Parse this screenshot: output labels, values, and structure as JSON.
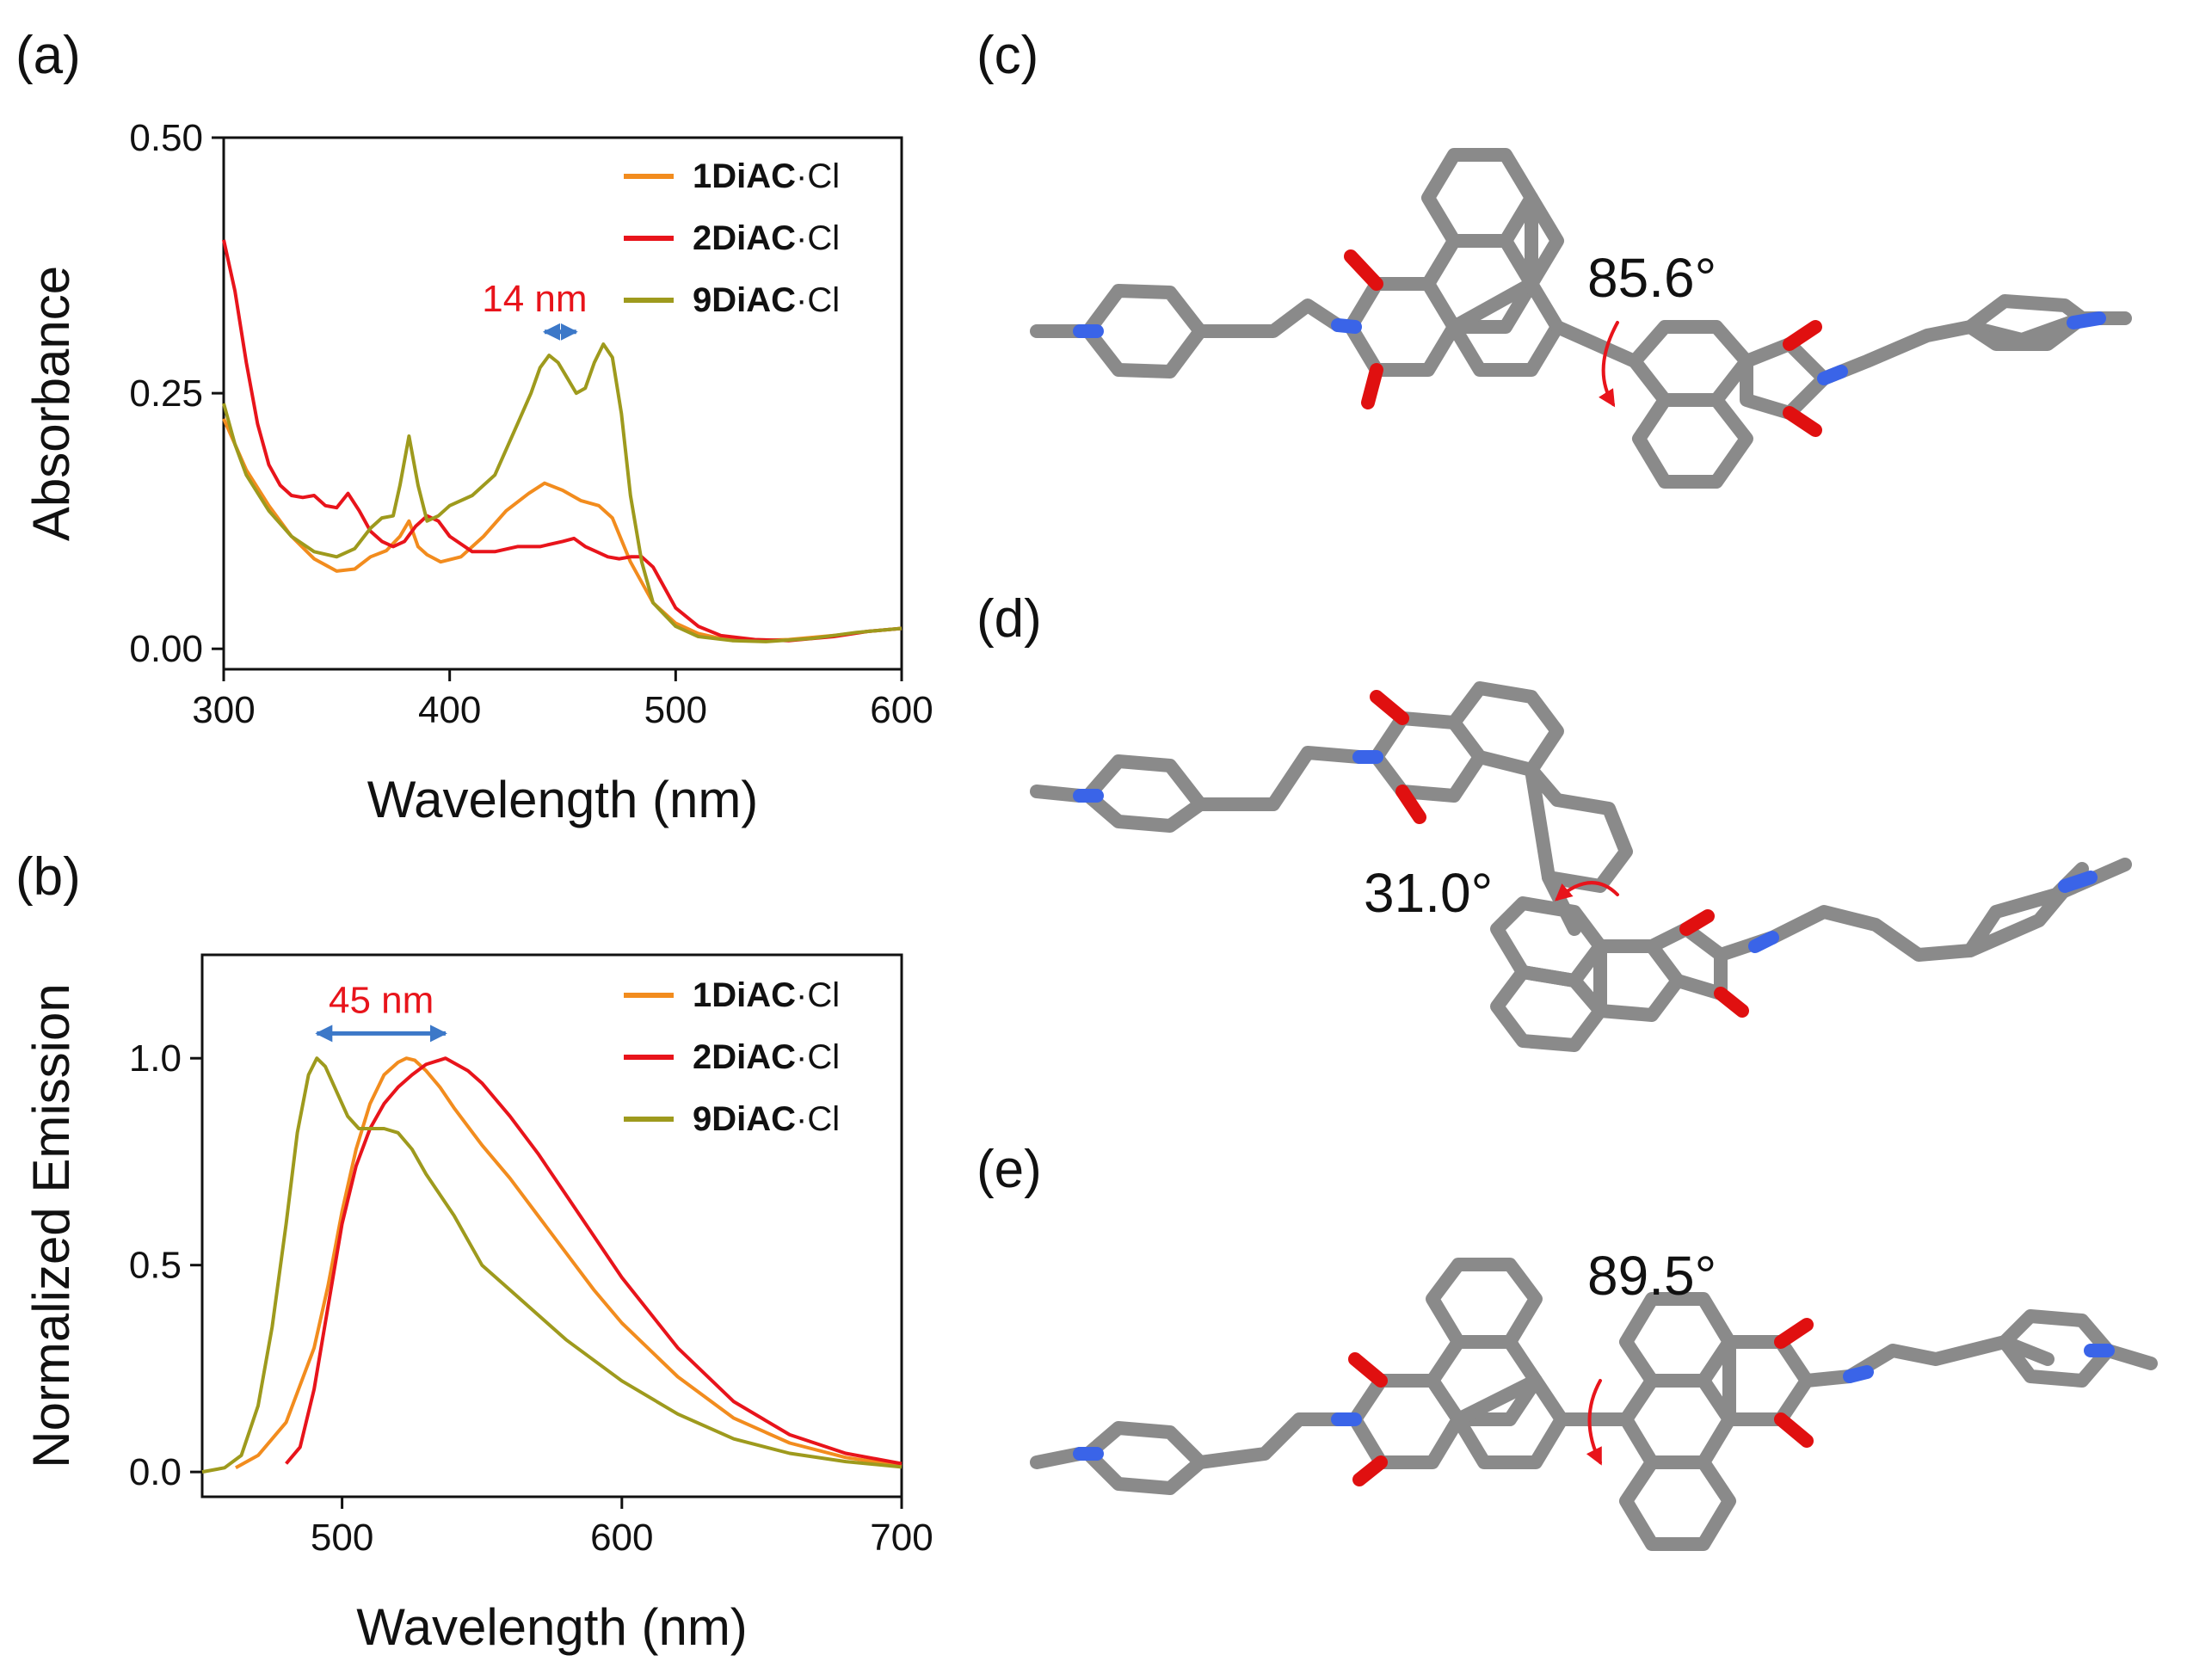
{
  "colors": {
    "series_1DiAC": "#F28C1E",
    "series_2DiAC": "#E8141B",
    "series_9DiAC": "#9E9A1D",
    "annotation_text": "#E8141B",
    "annotation_arrow": "#3C78C8",
    "carbon": "#8a8a8a",
    "oxygen": "#e01010",
    "nitrogen": "#3a64e8"
  },
  "panels": {
    "a": "(a)",
    "b": "(b)",
    "c": "(c)",
    "d": "(d)",
    "e": "(e)"
  },
  "legend_suffix": "·Cl",
  "chart_data": [
    {
      "type": "line",
      "panel": "a",
      "xlabel": "Wavelength (nm)",
      "ylabel": "Absorbance",
      "xlim": [
        300,
        600
      ],
      "ylim": [
        -0.02,
        0.5
      ],
      "xticks": [
        {
          "v": 300,
          "label": "300"
        },
        {
          "v": 400,
          "label": "400"
        },
        {
          "v": 500,
          "label": "500"
        },
        {
          "v": 600,
          "label": "600"
        }
      ],
      "yticks": [
        {
          "v": 0.0,
          "label": "0.00"
        },
        {
          "v": 0.25,
          "label": "0.25"
        },
        {
          "v": 0.5,
          "label": "0.50"
        }
      ],
      "legend_position": "top-right",
      "annotation": {
        "text": "14 nm",
        "x1": 442,
        "x2": 456,
        "y": 0.31
      },
      "series": [
        {
          "name": "1DiAC",
          "x": [
            300,
            310,
            320,
            330,
            340,
            350,
            358,
            365,
            372,
            378,
            382,
            386,
            390,
            396,
            405,
            415,
            425,
            435,
            442,
            450,
            458,
            466,
            472,
            480,
            490,
            500,
            510,
            520,
            535,
            550,
            570,
            585,
            600
          ],
          "y": [
            0.225,
            0.175,
            0.14,
            0.11,
            0.088,
            0.076,
            0.078,
            0.09,
            0.096,
            0.11,
            0.125,
            0.1,
            0.092,
            0.085,
            0.09,
            0.11,
            0.135,
            0.152,
            0.162,
            0.155,
            0.145,
            0.14,
            0.128,
            0.085,
            0.045,
            0.025,
            0.015,
            0.01,
            0.008,
            0.009,
            0.013,
            0.017,
            0.02
          ]
        },
        {
          "name": "2DiAC",
          "x": [
            300,
            305,
            310,
            315,
            320,
            325,
            330,
            335,
            340,
            345,
            350,
            355,
            360,
            365,
            370,
            375,
            380,
            385,
            390,
            395,
            400,
            410,
            420,
            430,
            440,
            450,
            455,
            460,
            465,
            470,
            475,
            480,
            485,
            490,
            495,
            500,
            510,
            520,
            535,
            550,
            570,
            585,
            600
          ],
          "y": [
            0.4,
            0.35,
            0.28,
            0.22,
            0.18,
            0.16,
            0.15,
            0.148,
            0.15,
            0.14,
            0.138,
            0.152,
            0.135,
            0.115,
            0.105,
            0.1,
            0.105,
            0.12,
            0.13,
            0.125,
            0.11,
            0.095,
            0.095,
            0.1,
            0.1,
            0.105,
            0.108,
            0.1,
            0.095,
            0.09,
            0.088,
            0.09,
            0.09,
            0.08,
            0.06,
            0.04,
            0.022,
            0.013,
            0.009,
            0.008,
            0.012,
            0.017,
            0.02
          ]
        },
        {
          "name": "9DiAC",
          "x": [
            300,
            305,
            310,
            320,
            330,
            340,
            350,
            358,
            365,
            370,
            375,
            378,
            382,
            386,
            390,
            395,
            400,
            410,
            420,
            430,
            436,
            440,
            444,
            448,
            452,
            456,
            460,
            464,
            468,
            472,
            476,
            480,
            485,
            490,
            500,
            510,
            525,
            540,
            560,
            580,
            600
          ],
          "y": [
            0.24,
            0.2,
            0.17,
            0.135,
            0.11,
            0.095,
            0.09,
            0.098,
            0.118,
            0.128,
            0.13,
            0.16,
            0.208,
            0.16,
            0.125,
            0.13,
            0.14,
            0.15,
            0.17,
            0.22,
            0.25,
            0.275,
            0.287,
            0.28,
            0.265,
            0.25,
            0.255,
            0.28,
            0.298,
            0.285,
            0.23,
            0.15,
            0.085,
            0.045,
            0.022,
            0.012,
            0.008,
            0.007,
            0.01,
            0.016,
            0.02
          ]
        }
      ]
    },
    {
      "type": "line",
      "panel": "b",
      "xlabel": "Wavelength (nm)",
      "ylabel": "Normalized Emission",
      "xlim": [
        450,
        700
      ],
      "ylim": [
        -0.06,
        1.25
      ],
      "xticks": [
        {
          "v": 500,
          "label": "500"
        },
        {
          "v": 600,
          "label": "600"
        },
        {
          "v": 700,
          "label": "700"
        }
      ],
      "yticks": [
        {
          "v": 0.0,
          "label": "0.0"
        },
        {
          "v": 0.5,
          "label": "0.5"
        },
        {
          "v": 1.0,
          "label": "1.0"
        }
      ],
      "legend_position": "top-right",
      "annotation": {
        "text": "45 nm",
        "x1": 491,
        "x2": 537,
        "y": 1.06
      },
      "series": [
        {
          "name": "1DiAC",
          "x": [
            462,
            470,
            480,
            490,
            495,
            500,
            505,
            510,
            515,
            520,
            523,
            526,
            530,
            535,
            540,
            550,
            560,
            570,
            580,
            590,
            600,
            620,
            640,
            660,
            680,
            700
          ],
          "y": [
            0.01,
            0.04,
            0.12,
            0.3,
            0.45,
            0.63,
            0.78,
            0.89,
            0.96,
            0.99,
            1.0,
            0.995,
            0.97,
            0.93,
            0.88,
            0.79,
            0.71,
            0.62,
            0.53,
            0.44,
            0.36,
            0.23,
            0.13,
            0.07,
            0.035,
            0.015
          ]
        },
        {
          "name": "2DiAC",
          "x": [
            480,
            485,
            490,
            495,
            500,
            505,
            510,
            515,
            520,
            525,
            530,
            537,
            545,
            550,
            560,
            570,
            580,
            590,
            600,
            620,
            640,
            660,
            680,
            700
          ],
          "y": [
            0.02,
            0.06,
            0.2,
            0.4,
            0.6,
            0.74,
            0.83,
            0.89,
            0.93,
            0.96,
            0.985,
            1.0,
            0.97,
            0.94,
            0.86,
            0.77,
            0.67,
            0.57,
            0.47,
            0.3,
            0.17,
            0.09,
            0.045,
            0.02
          ]
        },
        {
          "name": "9DiAC",
          "x": [
            450,
            458,
            464,
            470,
            475,
            480,
            484,
            488,
            491,
            494,
            498,
            502,
            506,
            510,
            515,
            520,
            525,
            530,
            540,
            550,
            560,
            580,
            600,
            620,
            640,
            660,
            680,
            700
          ],
          "y": [
            0.0,
            0.01,
            0.04,
            0.16,
            0.35,
            0.6,
            0.82,
            0.96,
            1.0,
            0.98,
            0.92,
            0.86,
            0.83,
            0.83,
            0.83,
            0.82,
            0.78,
            0.72,
            0.62,
            0.5,
            0.44,
            0.32,
            0.22,
            0.14,
            0.08,
            0.045,
            0.025,
            0.012
          ]
        }
      ]
    }
  ],
  "structures": [
    {
      "panel": "c",
      "angle_label": "85.6°"
    },
    {
      "panel": "d",
      "angle_label": "31.0°"
    },
    {
      "panel": "e",
      "angle_label": "89.5°"
    }
  ]
}
